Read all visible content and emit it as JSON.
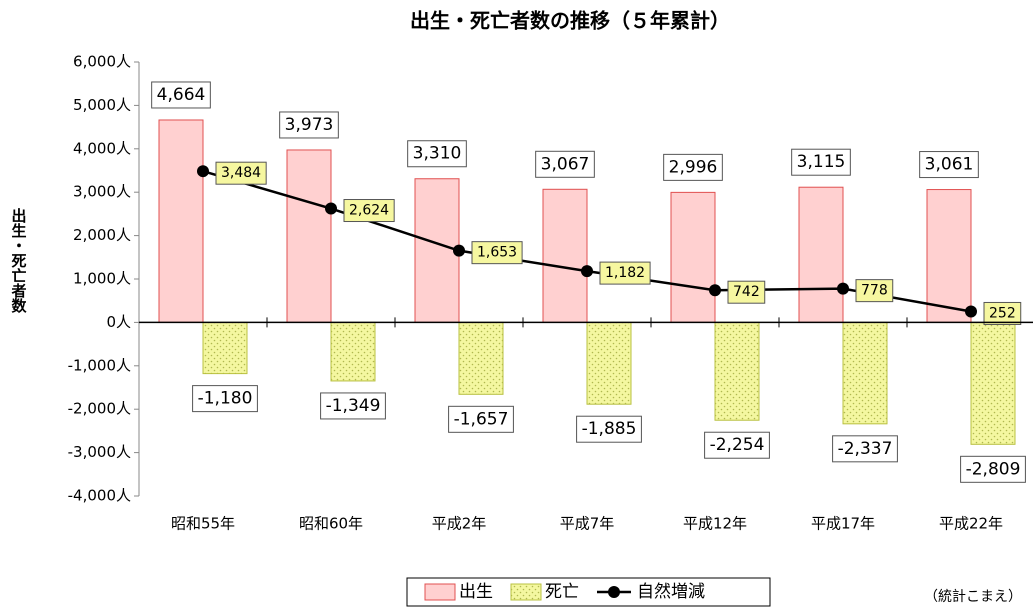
{
  "chart_data": {
    "type": "bar",
    "title": "出生・死亡者数の推移（５年累計）",
    "y_label": "出生・死亡者数",
    "note": "（統計こまえ）",
    "categories": [
      "昭和55年",
      "昭和60年",
      "平成2年",
      "平成7年",
      "平成12年",
      "平成17年",
      "平成22年"
    ],
    "series": [
      {
        "name": "出生",
        "type": "bar",
        "color": "#ffd0d0",
        "edge": "#e05050",
        "values": [
          4664,
          3973,
          3310,
          3067,
          2996,
          3115,
          3061
        ],
        "value_labels": [
          "4,664",
          "3,973",
          "3,310",
          "3,067",
          "2,996",
          "3,115",
          "3,061"
        ]
      },
      {
        "name": "死亡",
        "type": "bar",
        "color": "#f4f7a0",
        "edge": "#b8c040",
        "values": [
          -1180,
          -1349,
          -1657,
          -1885,
          -2254,
          -2337,
          -2809
        ],
        "value_labels": [
          "-1,180",
          "-1,349",
          "-1,657",
          "-1,885",
          "-2,254",
          "-2,337",
          "-2,809"
        ]
      },
      {
        "name": "自然増減",
        "type": "line",
        "color": "#000000",
        "values": [
          3484,
          2624,
          1653,
          1182,
          742,
          778,
          252
        ],
        "value_labels": [
          "3,484",
          "2,624",
          "1,653",
          "1,182",
          "742",
          "778",
          "252"
        ]
      }
    ],
    "ylim": [
      -4000,
      6000
    ],
    "yticks": [
      {
        "value": -4000,
        "label": "-4,000人"
      },
      {
        "value": -3000,
        "label": "-3,000人"
      },
      {
        "value": -2000,
        "label": "-2,000人"
      },
      {
        "value": -1000,
        "label": "-1,000人"
      },
      {
        "value": 0,
        "label": "0人"
      },
      {
        "value": 1000,
        "label": "1,000人"
      },
      {
        "value": 2000,
        "label": "2,000人"
      },
      {
        "value": 3000,
        "label": "3,000人"
      },
      {
        "value": 4000,
        "label": "4,000人"
      },
      {
        "value": 5000,
        "label": "5,000人"
      },
      {
        "value": 6000,
        "label": "6,000人"
      }
    ],
    "grid": false,
    "legend": "bottom"
  }
}
